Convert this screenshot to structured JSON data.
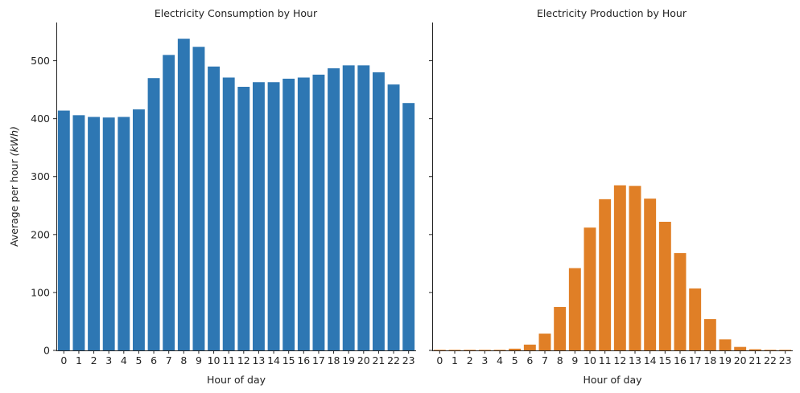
{
  "chart_data": [
    {
      "type": "bar",
      "title": "Electricity Consumption by Hour",
      "xlabel": "Hour of day",
      "ylabel_prefix": "Average per hour ",
      "ylabel_unit": "(kWh)",
      "categories": [
        "0",
        "1",
        "2",
        "3",
        "4",
        "5",
        "6",
        "7",
        "8",
        "9",
        "10",
        "11",
        "12",
        "13",
        "14",
        "15",
        "16",
        "17",
        "18",
        "19",
        "20",
        "21",
        "22",
        "23"
      ],
      "values": [
        414,
        406,
        403,
        402,
        403,
        416,
        470,
        510,
        538,
        524,
        490,
        471,
        455,
        463,
        463,
        469,
        471,
        476,
        487,
        492,
        492,
        480,
        459,
        427
      ],
      "color": "#2e77b3",
      "ylim": [
        0,
        566
      ],
      "yticks": [
        0,
        100,
        200,
        300,
        400,
        500
      ]
    },
    {
      "type": "bar",
      "title": "Electricity Production by Hour",
      "xlabel": "Hour of day",
      "categories": [
        "0",
        "1",
        "2",
        "3",
        "4",
        "5",
        "6",
        "7",
        "8",
        "9",
        "10",
        "11",
        "12",
        "13",
        "14",
        "15",
        "16",
        "17",
        "18",
        "19",
        "20",
        "21",
        "22",
        "23"
      ],
      "values": [
        1,
        1,
        1,
        1,
        1,
        3,
        10,
        29,
        75,
        142,
        212,
        261,
        285,
        284,
        262,
        222,
        168,
        107,
        54,
        19,
        6,
        2,
        1,
        1
      ],
      "color": "#e07f26",
      "ylim": [
        0,
        566
      ],
      "yticks": [
        0,
        100,
        200,
        300,
        400,
        500
      ]
    }
  ]
}
